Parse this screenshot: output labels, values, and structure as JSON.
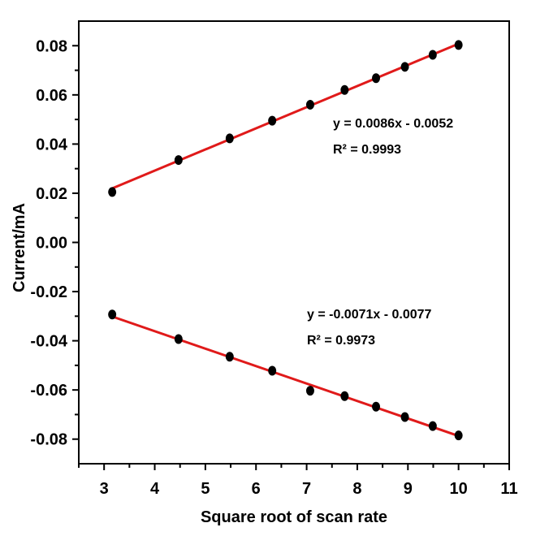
{
  "chart_data": {
    "type": "scatter",
    "xlabel": "Square root of scan rate",
    "ylabel": "Current/mA",
    "xlim": [
      2.5,
      11
    ],
    "ylim": [
      -0.09,
      0.09
    ],
    "xticks": [
      3,
      4,
      5,
      6,
      7,
      8,
      9,
      10,
      11
    ],
    "yticks": [
      -0.08,
      -0.06,
      -0.04,
      -0.02,
      0.0,
      0.02,
      0.04,
      0.06,
      0.08
    ],
    "ytick_labels": [
      "-0.08",
      "-0.06",
      "-0.04",
      "-0.02",
      "0.00",
      "0.02",
      "0.04",
      "0.06",
      "0.08"
    ],
    "grid": false,
    "series": [
      {
        "x": [
          3.16,
          4.47,
          5.48,
          6.32,
          7.07,
          7.75,
          8.37,
          8.94,
          9.49,
          10.0
        ],
        "y": [
          0.0205,
          0.0335,
          0.0423,
          0.0495,
          0.056,
          0.062,
          0.0668,
          0.0714,
          0.0763,
          0.0803
        ],
        "marker_color": "#000000",
        "fit": {
          "slope": 0.0086,
          "intercept": -0.0052,
          "x_range": [
            3.16,
            10.0
          ],
          "color": "#e01a1a"
        },
        "annotation": {
          "equation": "y = 0.0086x - 0.0052",
          "r2": "R² = 0.9993"
        }
      },
      {
        "x": [
          3.16,
          4.47,
          5.48,
          6.32,
          7.07,
          7.75,
          8.37,
          8.94,
          9.49,
          10.0
        ],
        "y": [
          -0.0293,
          -0.0393,
          -0.0465,
          -0.0522,
          -0.0603,
          -0.0625,
          -0.0668,
          -0.071,
          -0.0747,
          -0.0785
        ],
        "marker_color": "#000000",
        "fit": {
          "slope": -0.0071,
          "intercept": -0.0077,
          "x_range": [
            3.16,
            10.0
          ],
          "color": "#e01a1a"
        },
        "annotation": {
          "equation": "y = -0.0071x - 0.0077",
          "r2": "R² = 0.9973"
        }
      }
    ]
  }
}
